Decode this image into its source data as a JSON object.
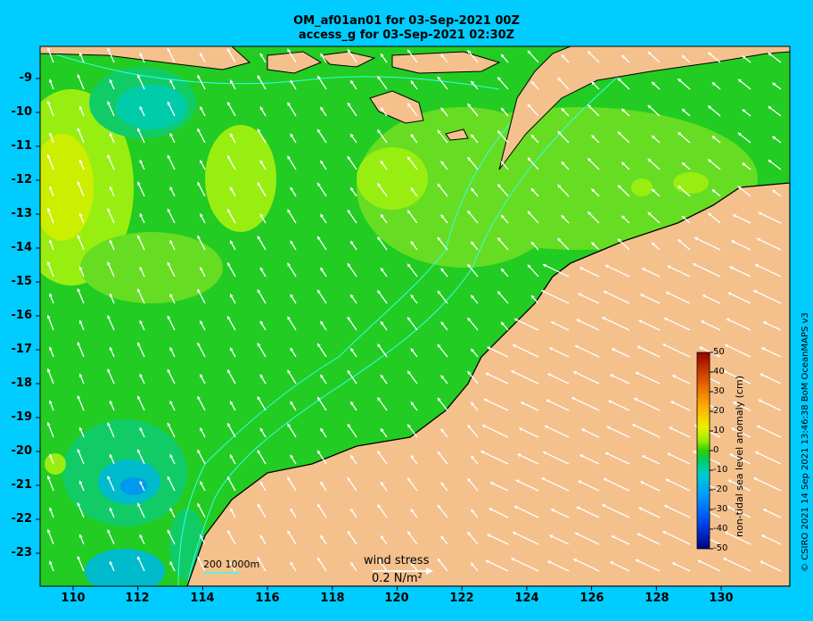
{
  "title_line1": "OM_af01an01 for 03-Sep-2021 00Z",
  "title_line2": "access_g for 03-Sep-2021 02:30Z",
  "credit": "© CSIRO 2021  14 Sep 2021 13:46:38 BoM OceanMAPS v3",
  "y_ticks": [
    "-9",
    "-10",
    "-11",
    "-12",
    "-13",
    "-14",
    "-15",
    "-16",
    "-17",
    "-18",
    "-19",
    "-20",
    "-21",
    "-22",
    "-23"
  ],
  "x_ticks": [
    "110",
    "112",
    "114",
    "116",
    "118",
    "120",
    "122",
    "124",
    "126",
    "128",
    "130"
  ],
  "colorbar": {
    "title": "non-tidal sea level anomaly (cm)",
    "ticks": [
      "50",
      "40",
      "30",
      "20",
      "10",
      "0",
      "-10",
      "-20",
      "-30",
      "-40",
      "-50"
    ]
  },
  "bathymetry_label": "200  1000m",
  "wind_stress": {
    "label": "wind stress",
    "value": "0.2 N/m²"
  },
  "colors": {
    "background": "#00ccff",
    "land": "#f4c08c",
    "sea_base": "#22cc22",
    "arrows": "#ffffff"
  }
}
